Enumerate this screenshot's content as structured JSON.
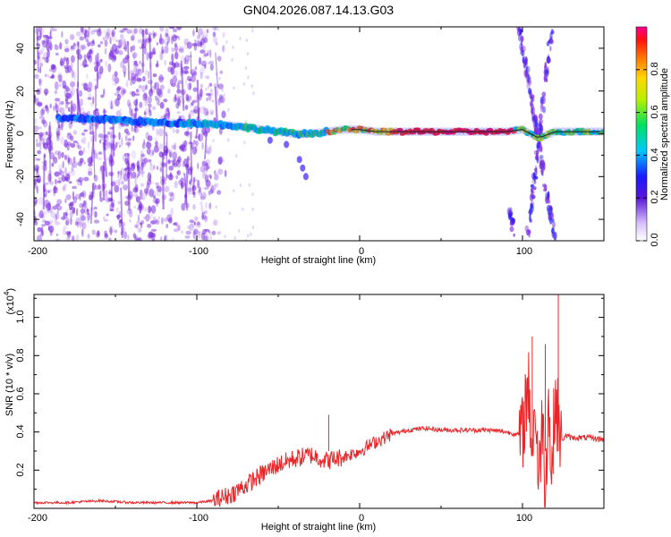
{
  "title": "GN04.2026.087.14.13.G03",
  "colors": {
    "line": "#e8262a",
    "speckle": "#7a2be0",
    "frame": "#000000",
    "background": "#ffffff"
  },
  "chart_data": [
    {
      "type": "heatmap",
      "xlabel": "Height of straight line (km)",
      "ylabel": "Frequency (Hz)",
      "xlim": [
        -200,
        150
      ],
      "ylim": [
        -50,
        50
      ],
      "x_ticks": [
        "-200",
        "-100",
        "0",
        "100"
      ],
      "y_ticks": [
        "-40",
        "-20",
        "0",
        "20",
        "40"
      ],
      "x_tick_values": [
        -200,
        -100,
        0,
        100
      ],
      "y_tick_values": [
        -40,
        -20,
        0,
        20,
        40
      ],
      "ridge": {
        "x": [
          -175,
          -160,
          -140,
          -120,
          -100,
          -80,
          -70,
          -60,
          -50,
          -40,
          -30,
          -20,
          -10,
          0,
          10,
          30,
          60,
          90,
          100,
          110,
          120,
          130,
          150
        ],
        "freq": [
          7,
          7,
          6,
          5,
          5,
          4,
          3,
          2,
          1,
          0,
          0,
          1,
          2,
          2,
          1,
          1,
          1,
          1,
          2,
          -2,
          1,
          1,
          1
        ]
      },
      "colorbar": {
        "label": "Normalized spectral amplitude",
        "range": [
          0,
          1
        ],
        "ticks": [
          "0.0",
          "0.2",
          "0.4",
          "0.6",
          "0.8"
        ],
        "tick_values": [
          0,
          0.2,
          0.4,
          0.6,
          0.8
        ]
      }
    },
    {
      "type": "line",
      "xlabel": "Height of straight line (km)",
      "ylabel": "SNR (10 * v/v)",
      "scale_label": "(x10",
      "scale_exponent": "4",
      "scale_close": ")",
      "xlim": [
        -200,
        150
      ],
      "ylim": [
        0,
        1.12
      ],
      "x_ticks": [
        "-200",
        "-100",
        "0",
        "100"
      ],
      "y_ticks": [
        "0.2",
        "0.4",
        "0.6",
        "0.8",
        "1.0"
      ],
      "x_tick_values": [
        -200,
        -100,
        0,
        100
      ],
      "y_tick_values": [
        0.2,
        0.4,
        0.6,
        0.8,
        1.0
      ],
      "series": [
        {
          "name": "SNR",
          "x": [
            -200,
            -180,
            -160,
            -140,
            -120,
            -100,
            -90,
            -80,
            -70,
            -60,
            -50,
            -40,
            -30,
            -20,
            -10,
            0,
            10,
            20,
            30,
            40,
            50,
            60,
            70,
            80,
            90,
            95,
            100,
            102,
            104,
            106,
            108,
            110,
            112,
            114,
            116,
            118,
            120,
            122,
            124,
            126,
            130,
            140,
            150
          ],
          "values": [
            0.03,
            0.03,
            0.04,
            0.03,
            0.03,
            0.03,
            0.04,
            0.07,
            0.12,
            0.18,
            0.23,
            0.26,
            0.28,
            0.25,
            0.27,
            0.3,
            0.35,
            0.39,
            0.41,
            0.42,
            0.41,
            0.41,
            0.41,
            0.41,
            0.4,
            0.39,
            0.38,
            0.58,
            0.62,
            0.3,
            0.55,
            0.08,
            0.52,
            0.12,
            0.56,
            0.14,
            0.6,
            0.45,
            0.35,
            0.38,
            0.37,
            0.37,
            0.36
          ]
        }
      ],
      "spikes": [
        {
          "x": -19,
          "value": 0.49
        },
        {
          "x": 106,
          "value": 0.9
        },
        {
          "x": 114,
          "value": 0.86
        },
        {
          "x": 122,
          "value": 1.12
        }
      ]
    }
  ]
}
